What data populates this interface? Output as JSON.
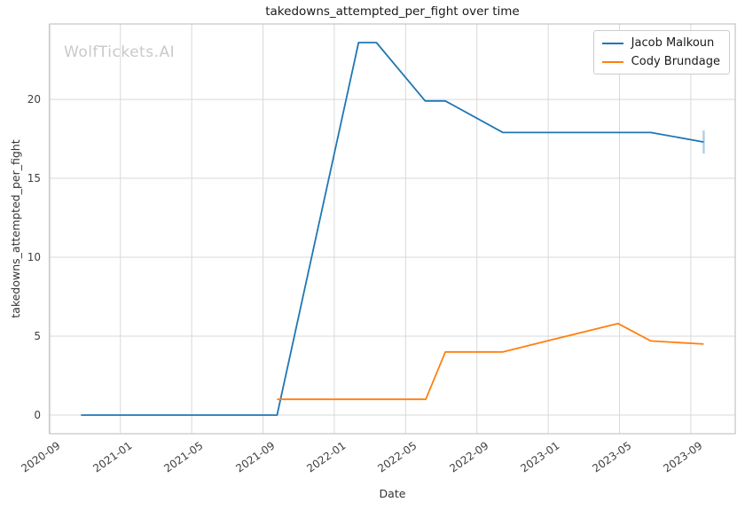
{
  "watermark": "WolfTickets.AI",
  "chart_data": {
    "type": "line",
    "title": "takedowns_attempted_per_fight over time",
    "xlabel": "Date",
    "ylabel": "takedowns_attempted_per_fight",
    "grid": true,
    "legend_position": "upper right",
    "xlim": [
      "2020-09-02",
      "2023-11-16"
    ],
    "ylim": [
      -1.18,
      24.78
    ],
    "xticks": [
      "2020-09",
      "2021-01",
      "2021-05",
      "2021-09",
      "2022-01",
      "2022-05",
      "2022-09",
      "2023-01",
      "2023-05",
      "2023-09"
    ],
    "yticks": [
      0,
      5,
      10,
      15,
      20
    ],
    "series": [
      {
        "name": "Jacob Malkoun",
        "color": "#1f77b4",
        "end_marker": "vline",
        "points": [
          [
            "2020-10-25",
            0.0
          ],
          [
            "2021-04-10",
            0.0
          ],
          [
            "2021-09-25",
            0.0
          ],
          [
            "2022-02-12",
            23.6
          ],
          [
            "2022-03-12",
            23.6
          ],
          [
            "2022-06-04",
            19.9
          ],
          [
            "2022-07-08",
            19.9
          ],
          [
            "2022-10-15",
            17.9
          ],
          [
            "2023-06-24",
            17.9
          ],
          [
            "2023-09-23",
            17.3
          ]
        ]
      },
      {
        "name": "Cody Brundage",
        "color": "#ff7f0e",
        "end_marker": null,
        "points": [
          [
            "2021-09-25",
            1.0
          ],
          [
            "2022-03-05",
            1.0
          ],
          [
            "2022-06-05",
            1.0
          ],
          [
            "2022-07-08",
            4.0
          ],
          [
            "2022-10-15",
            4.0
          ],
          [
            "2023-01-10",
            4.8
          ],
          [
            "2023-04-29",
            5.8
          ],
          [
            "2023-06-24",
            4.7
          ],
          [
            "2023-09-23",
            4.5
          ]
        ]
      }
    ]
  }
}
